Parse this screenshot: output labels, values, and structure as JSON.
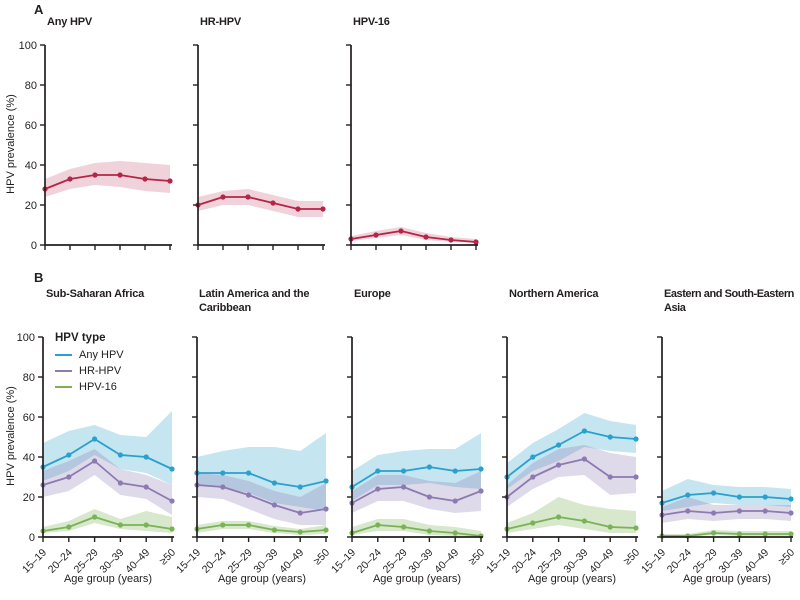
{
  "figure": {
    "panel_a_label": "A",
    "panel_b_label": "B",
    "ylabel": "HPV prevalence (%)",
    "xlabel": "Age group (years)"
  },
  "legend": {
    "title": "HPV type",
    "items": [
      {
        "label": "Any HPV",
        "color": "#2aa0cd"
      },
      {
        "label": "HR-HPV",
        "color": "#8c7ab0"
      },
      {
        "label": "HPV-16",
        "color": "#79b356"
      }
    ]
  },
  "colors": {
    "red_line": "#b62447",
    "blue_line": "#2aa0cd",
    "purple_line": "#8c7ab0",
    "green_line": "#79b356",
    "axis": "#231f20"
  },
  "chart_data": [
    {
      "panel": "A",
      "title": "Any HPV",
      "type": "line",
      "ylabel": "HPV prevalence (%)",
      "categories": [
        "15–19",
        "20–24",
        "25–29",
        "30–39",
        "40–49",
        "≥50"
      ],
      "ylim": [
        0,
        100
      ],
      "yticks": [
        0,
        20,
        40,
        60,
        80,
        100
      ],
      "show_y_labels": true,
      "show_x_labels": false,
      "series": [
        {
          "name": "Any HPV",
          "color": "#b62447",
          "values": [
            28,
            33,
            35,
            35,
            33,
            32
          ],
          "ci_upper": [
            33,
            38,
            41,
            42,
            41,
            40
          ],
          "ci_lower": [
            24,
            28,
            30,
            29,
            27,
            26
          ]
        }
      ]
    },
    {
      "panel": "A",
      "title": "HR-HPV",
      "type": "line",
      "categories": [
        "15–19",
        "20–24",
        "25–29",
        "30–39",
        "40–49",
        "≥50"
      ],
      "ylim": [
        0,
        100
      ],
      "yticks": [
        0,
        20,
        40,
        60,
        80,
        100
      ],
      "show_y_labels": false,
      "show_x_labels": false,
      "series": [
        {
          "name": "HR-HPV",
          "color": "#b62447",
          "values": [
            20,
            24,
            24,
            21,
            18,
            18
          ],
          "ci_upper": [
            24,
            27,
            28,
            25,
            22,
            22
          ],
          "ci_lower": [
            17,
            20,
            20,
            17,
            14,
            14
          ]
        }
      ]
    },
    {
      "panel": "A",
      "title": "HPV-16",
      "type": "line",
      "categories": [
        "15–19",
        "20–24",
        "25–29",
        "30–39",
        "40–49",
        "≥50"
      ],
      "ylim": [
        0,
        100
      ],
      "yticks": [
        0,
        20,
        40,
        60,
        80,
        100
      ],
      "show_y_labels": false,
      "show_x_labels": false,
      "series": [
        {
          "name": "HPV-16",
          "color": "#b62447",
          "values": [
            3,
            5,
            7,
            4,
            2.5,
            1.5
          ],
          "ci_upper": [
            4.5,
            7,
            9,
            6,
            4,
            3
          ],
          "ci_lower": [
            2,
            3.5,
            5,
            2.5,
            1.5,
            1
          ]
        }
      ]
    },
    {
      "panel": "B",
      "title": "Sub-Saharan Africa",
      "type": "line",
      "ylabel": "HPV prevalence (%)",
      "xlabel": "Age group (years)",
      "categories": [
        "15–19",
        "20–24",
        "25–29",
        "30–39",
        "40–49",
        "≥50"
      ],
      "ylim": [
        0,
        100
      ],
      "yticks": [
        0,
        20,
        40,
        60,
        80,
        100
      ],
      "show_y_labels": true,
      "show_x_labels": true,
      "series": [
        {
          "name": "Any HPV",
          "color": "#2aa0cd",
          "values": [
            35,
            41,
            49,
            41,
            40,
            34
          ],
          "ci_upper": [
            47,
            53,
            56,
            51,
            50,
            63
          ],
          "ci_lower": [
            28,
            33,
            41,
            34,
            32,
            26
          ]
        },
        {
          "name": "HR-HPV",
          "color": "#8c7ab0",
          "values": [
            26,
            30,
            38,
            27,
            25,
            18
          ],
          "ci_upper": [
            33,
            38,
            44,
            34,
            31,
            26
          ],
          "ci_lower": [
            20,
            23,
            31,
            21,
            19,
            11
          ]
        },
        {
          "name": "HPV-16",
          "color": "#79b356",
          "values": [
            3,
            5,
            10,
            6,
            6,
            4
          ],
          "ci_upper": [
            5,
            8,
            14,
            9,
            13,
            10
          ],
          "ci_lower": [
            2,
            3,
            7,
            4,
            3,
            2
          ]
        }
      ]
    },
    {
      "panel": "B",
      "title": "Latin America and the Caribbean",
      "type": "line",
      "xlabel": "Age group (years)",
      "categories": [
        "15–19",
        "20–24",
        "25–29",
        "30–39",
        "40–49",
        "≥50"
      ],
      "ylim": [
        0,
        100
      ],
      "yticks": [
        0,
        20,
        40,
        60,
        80,
        100
      ],
      "show_y_labels": false,
      "show_x_labels": true,
      "series": [
        {
          "name": "Any HPV",
          "color": "#2aa0cd",
          "values": [
            32,
            32,
            32,
            27,
            25,
            28
          ],
          "ci_upper": [
            40,
            43,
            45,
            45,
            43,
            52
          ],
          "ci_lower": [
            26,
            25,
            22,
            17,
            15,
            13
          ]
        },
        {
          "name": "HR-HPV",
          "color": "#8c7ab0",
          "values": [
            26,
            25,
            21,
            16,
            12,
            14
          ],
          "ci_upper": [
            32,
            31,
            28,
            23,
            20,
            27
          ],
          "ci_lower": [
            20,
            19,
            14,
            9,
            6,
            6
          ]
        },
        {
          "name": "HPV-16",
          "color": "#79b356",
          "values": [
            4,
            6,
            6,
            3.5,
            2.5,
            3.5
          ],
          "ci_upper": [
            6,
            8,
            8,
            5.5,
            4,
            6
          ],
          "ci_lower": [
            2,
            4,
            4,
            2,
            1,
            1.5
          ]
        }
      ]
    },
    {
      "panel": "B",
      "title": "Europe",
      "type": "line",
      "xlabel": "Age group (years)",
      "categories": [
        "15–19",
        "20–24",
        "25–29",
        "30–39",
        "40–49",
        "≥50"
      ],
      "ylim": [
        0,
        100
      ],
      "yticks": [
        0,
        20,
        40,
        60,
        80,
        100
      ],
      "show_y_labels": false,
      "show_x_labels": true,
      "series": [
        {
          "name": "Any HPV",
          "color": "#2aa0cd",
          "values": [
            25,
            33,
            33,
            35,
            33,
            34
          ],
          "ci_upper": [
            33,
            41,
            43,
            44,
            44,
            52
          ],
          "ci_lower": [
            18,
            26,
            26,
            27,
            25,
            24
          ]
        },
        {
          "name": "HR-HPV",
          "color": "#8c7ab0",
          "values": [
            17,
            24,
            25,
            20,
            18,
            23
          ],
          "ci_upper": [
            23,
            31,
            31,
            28,
            27,
            33
          ],
          "ci_lower": [
            12,
            18,
            18,
            14,
            12,
            13
          ]
        },
        {
          "name": "HPV-16",
          "color": "#79b356",
          "values": [
            2,
            6,
            5,
            3,
            2,
            0.5
          ],
          "ci_upper": [
            5,
            9,
            9,
            6,
            5,
            3
          ],
          "ci_lower": [
            1,
            3,
            3,
            1,
            0.5,
            0
          ]
        }
      ]
    },
    {
      "panel": "B",
      "title": "Northern America",
      "type": "line",
      "xlabel": "Age group (years)",
      "categories": [
        "15–19",
        "20–24",
        "25–29",
        "30–39",
        "40–49",
        "≥50"
      ],
      "ylim": [
        0,
        100
      ],
      "yticks": [
        0,
        20,
        40,
        60,
        80,
        100
      ],
      "show_y_labels": false,
      "show_x_labels": true,
      "series": [
        {
          "name": "Any HPV",
          "color": "#2aa0cd",
          "values": [
            30,
            40,
            46,
            53,
            50,
            49
          ],
          "ci_upper": [
            37,
            47,
            54,
            62,
            58,
            56
          ],
          "ci_lower": [
            24,
            33,
            38,
            45,
            43,
            42
          ]
        },
        {
          "name": "HR-HPV",
          "color": "#8c7ab0",
          "values": [
            20,
            30,
            36,
            39,
            30,
            30
          ],
          "ci_upper": [
            26,
            37,
            44,
            46,
            42,
            40
          ],
          "ci_lower": [
            15,
            24,
            30,
            31,
            21,
            22
          ]
        },
        {
          "name": "HPV-16",
          "color": "#79b356",
          "values": [
            4,
            7,
            10,
            8,
            5,
            4.5
          ],
          "ci_upper": [
            7,
            12,
            20,
            16,
            14,
            13
          ],
          "ci_lower": [
            2,
            4,
            6,
            4,
            2,
            2
          ]
        }
      ]
    },
    {
      "panel": "B",
      "title": "Eastern and South-Eastern Asia",
      "type": "line",
      "xlabel": "Age group (years)",
      "categories": [
        "15–19",
        "20–24",
        "25–29",
        "30–39",
        "40–49",
        "≥50"
      ],
      "ylim": [
        0,
        100
      ],
      "yticks": [
        0,
        20,
        40,
        60,
        80,
        100
      ],
      "show_y_labels": false,
      "show_x_labels": true,
      "series": [
        {
          "name": "Any HPV",
          "color": "#2aa0cd",
          "values": [
            17,
            21,
            22,
            20,
            20,
            19
          ],
          "ci_upper": [
            23,
            29,
            26,
            25,
            25,
            24
          ],
          "ci_lower": [
            13,
            15,
            17,
            16,
            16,
            15
          ]
        },
        {
          "name": "HR-HPV",
          "color": "#8c7ab0",
          "values": [
            11,
            13,
            12,
            13,
            13,
            12
          ],
          "ci_upper": [
            15,
            20,
            16,
            16,
            16,
            16
          ],
          "ci_lower": [
            7,
            9,
            8,
            9,
            9,
            8
          ]
        },
        {
          "name": "HPV-16",
          "color": "#79b356",
          "values": [
            0.5,
            0.5,
            2,
            1.5,
            1.5,
            1.5
          ],
          "ci_upper": [
            1.5,
            1.5,
            3.5,
            3,
            3,
            3
          ],
          "ci_lower": [
            0,
            0,
            1,
            0.5,
            0.5,
            0.5
          ]
        }
      ]
    }
  ]
}
